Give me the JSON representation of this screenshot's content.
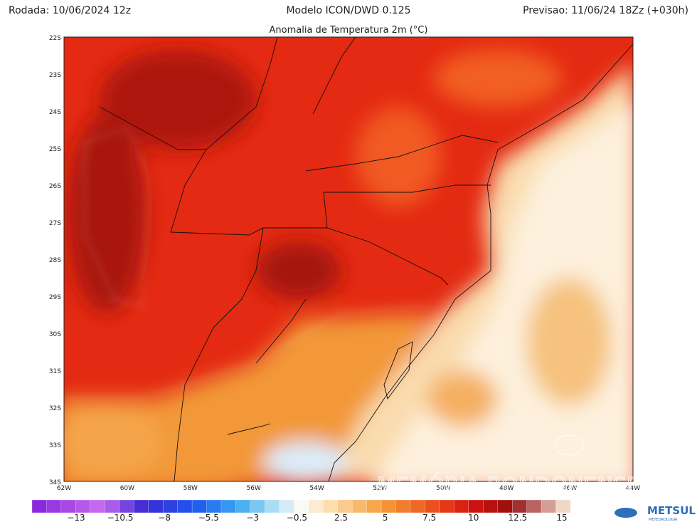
{
  "header": {
    "left": "Rodada: 10/06/2024 12z",
    "center": "Modelo ICON/DWD 0.125",
    "right": "Previsao: 11/06/24 18Zz (+030h)"
  },
  "map": {
    "title": "Anomalia de Temperatura 2m (°C)",
    "lat_labels": [
      "22S",
      "23S",
      "24S",
      "25S",
      "26S",
      "27S",
      "28S",
      "29S",
      "30S",
      "31S",
      "32S",
      "33S",
      "34S"
    ],
    "lon_labels": [
      "62W",
      "60W",
      "58W",
      "56W",
      "54W",
      "52W",
      "50W",
      "48W",
      "46W",
      "44W"
    ]
  },
  "colorbar": {
    "labels": [
      "−13",
      "−10.5",
      "−8",
      "−5.5",
      "−3",
      "−0.5",
      "2.5",
      "5",
      "7.5",
      "10",
      "12.5",
      "15"
    ]
  },
  "logo": {
    "name": "METSUL",
    "tagline": "METEOROLOGIA"
  },
  "watermark": "MEMÓRIA RONDONENSE"
}
